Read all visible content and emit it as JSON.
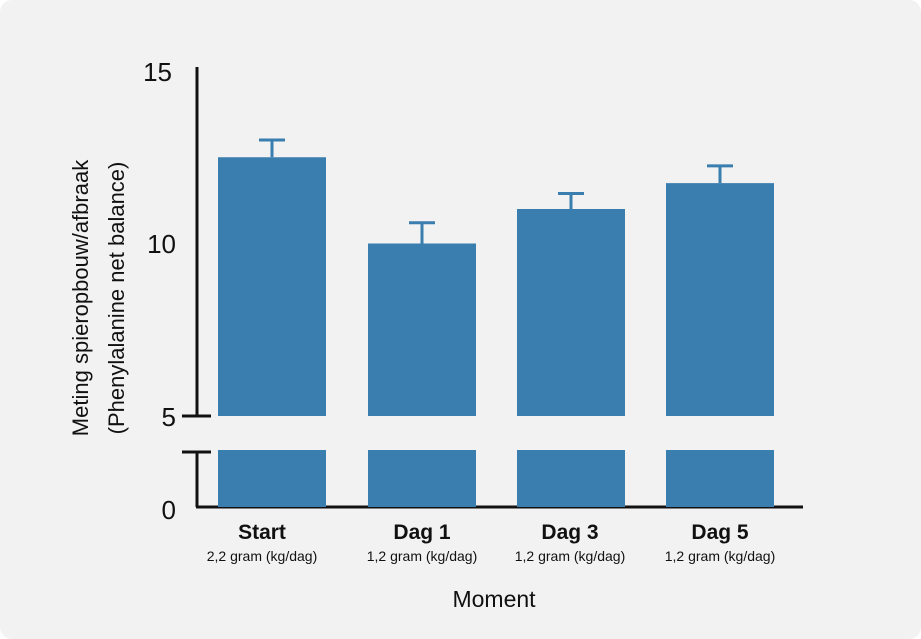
{
  "chart_data": {
    "type": "bar",
    "categories": [
      "Start",
      "Dag 1",
      "Dag 3",
      "Dag 5"
    ],
    "category_sublabels": [
      "2,2 gram (kg/dag)",
      "1,2 gram (kg/dag)",
      "1,2 gram (kg/dag)",
      "1,2 gram (kg/dag)"
    ],
    "values": [
      12.5,
      10.0,
      11.0,
      11.75
    ],
    "error_upper": [
      13.0,
      10.6,
      11.45,
      12.25
    ],
    "ylabel_line1": "Meting spieropbouw/afbraak",
    "ylabel_line2": "(Phenylalanine net balance)",
    "xlabel": "Moment",
    "yticks": [
      "15",
      "10",
      "5",
      "0"
    ],
    "ylim": [
      5,
      15
    ],
    "broken_axis": true,
    "grid": false,
    "colors": {
      "bar": "#3a7daf",
      "axis": "#111111",
      "background": "#f2f2f2"
    }
  }
}
